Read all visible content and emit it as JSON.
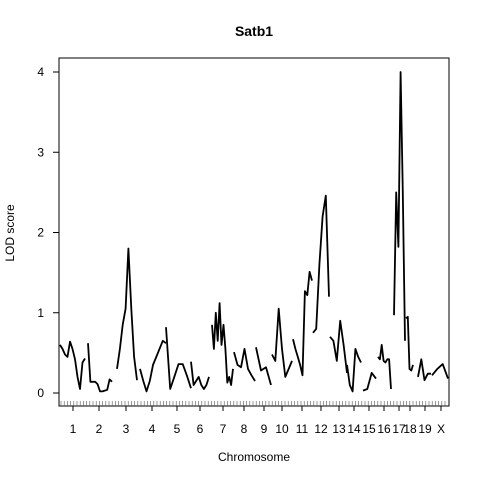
{
  "chart_data": {
    "type": "line",
    "title": "Satb1",
    "xlabel": "Chromosome",
    "ylabel": "LOD score",
    "ylim": [
      0,
      4
    ],
    "yticks": [
      0,
      1,
      2,
      3,
      4
    ],
    "chromosome_labels": [
      "1",
      "2",
      "3",
      "4",
      "5",
      "6",
      "7",
      "8",
      "9",
      "10",
      "11",
      "12",
      "13",
      "14",
      "15",
      "16",
      "17",
      "18",
      "19",
      "X"
    ],
    "chromosomes": [
      {
        "name": "1",
        "pts": [
          [
            0.6
          ],
          [
            0.55
          ],
          [
            0.48
          ],
          [
            0.45
          ],
          [
            0.64
          ],
          [
            0.55
          ],
          [
            0.42
          ],
          [
            0.2
          ],
          [
            0.05
          ],
          [
            0.38
          ],
          [
            0.43
          ]
        ],
        "start": 0,
        "len": 11
      },
      {
        "name": "2",
        "pts": [
          [
            0.62
          ],
          [
            0.14
          ],
          [
            0.14
          ],
          [
            0.14
          ],
          [
            0.11
          ],
          [
            0.02
          ],
          [
            0.02
          ],
          [
            0.03
          ],
          [
            0.04
          ],
          [
            0.17
          ],
          [
            0.14
          ]
        ],
        "start": 0,
        "len": 11
      },
      {
        "name": "3",
        "pts": [
          [
            0.3
          ],
          [
            0.55
          ],
          [
            0.85
          ],
          [
            1.05
          ],
          [
            1.8
          ],
          [
            1.05
          ],
          [
            0.45
          ],
          [
            0.16
          ]
        ],
        "start": 0,
        "len": 8
      },
      {
        "name": "4",
        "pts": [
          [
            0.3
          ],
          [
            0.15
          ],
          [
            0.02
          ],
          [
            0.15
          ],
          [
            0.35
          ],
          [
            0.45
          ],
          [
            0.55
          ],
          [
            0.65
          ],
          [
            0.62
          ]
        ],
        "start": 0,
        "len": 9
      },
      {
        "name": "5",
        "pts": [
          [
            0.82
          ],
          [
            0.05
          ],
          [
            0.2
          ],
          [
            0.36
          ],
          [
            0.36
          ],
          [
            0.22
          ],
          [
            0.06
          ]
        ],
        "start": 0,
        "len": 7
      },
      {
        "name": "6",
        "pts": [
          [
            0.39
          ],
          [
            0.1
          ],
          [
            0.15
          ],
          [
            0.2
          ],
          [
            0.1
          ],
          [
            0.05
          ],
          [
            0.1
          ],
          [
            0.2
          ]
        ],
        "start": 0,
        "len": 8
      },
      {
        "name": "7",
        "pts": [
          [
            0.85
          ],
          [
            0.55
          ],
          [
            1.0
          ],
          [
            0.65
          ],
          [
            1.12
          ],
          [
            0.6
          ],
          [
            0.85
          ],
          [
            0.55
          ],
          [
            0.13
          ],
          [
            0.2
          ],
          [
            0.1
          ],
          [
            0.3
          ]
        ],
        "start": 0,
        "len": 12
      },
      {
        "name": "8",
        "pts": [
          [
            0.51
          ],
          [
            0.35
          ],
          [
            0.32
          ],
          [
            0.55
          ],
          [
            0.3
          ],
          [
            0.22
          ],
          [
            0.15
          ]
        ],
        "start": 0,
        "len": 7
      },
      {
        "name": "9",
        "pts": [
          [
            0.57
          ],
          [
            0.28
          ],
          [
            0.32
          ],
          [
            0.1
          ]
        ],
        "start": 0,
        "len": 4
      },
      {
        "name": "10",
        "pts": [
          [
            0.48
          ],
          [
            0.4
          ],
          [
            1.05
          ],
          [
            0.55
          ],
          [
            0.2
          ],
          [
            0.3
          ],
          [
            0.4
          ]
        ],
        "start": 0,
        "len": 7
      },
      {
        "name": "11",
        "pts": [
          [
            0.67
          ],
          [
            0.55
          ],
          [
            0.45
          ],
          [
            0.35
          ],
          [
            0.22
          ],
          [
            1.27
          ],
          [
            1.22
          ],
          [
            1.51
          ],
          [
            1.4
          ]
        ],
        "start": 0,
        "len": 9
      },
      {
        "name": "12",
        "pts": [
          [
            0.75
          ],
          [
            0.8
          ],
          [
            1.6
          ],
          [
            2.2
          ],
          [
            2.46
          ],
          [
            1.2
          ]
        ],
        "start": 0,
        "len": 6
      },
      {
        "name": "13",
        "pts": [
          [
            0.7
          ],
          [
            0.65
          ],
          [
            0.4
          ],
          [
            0.9
          ],
          [
            0.6
          ],
          [
            0.25
          ]
        ],
        "start": 0,
        "len": 6
      },
      {
        "name": "14",
        "pts": [
          [
            0.35
          ],
          [
            0.1
          ],
          [
            0.02
          ],
          [
            0.55
          ],
          [
            0.45
          ],
          [
            0.38
          ]
        ],
        "start": 0,
        "len": 6
      },
      {
        "name": "15",
        "pts": [
          [
            0.03
          ],
          [
            0.05
          ],
          [
            0.25
          ],
          [
            0.18
          ]
        ],
        "start": 0,
        "len": 4
      },
      {
        "name": "16",
        "pts": [
          [
            0.45
          ],
          [
            0.42
          ],
          [
            0.6
          ],
          [
            0.4
          ],
          [
            0.38
          ],
          [
            0.42
          ],
          [
            0.42
          ],
          [
            0.05
          ]
        ],
        "start": 0,
        "len": 8
      },
      {
        "name": "17",
        "pts": [
          [
            0.97
          ],
          [
            2.5
          ],
          [
            1.82
          ],
          [
            4.0
          ],
          [
            2.5
          ],
          [
            0.65
          ]
        ],
        "start": 0,
        "len": 6
      },
      {
        "name": "18",
        "pts": [
          [
            0.93
          ],
          [
            0.95
          ],
          [
            0.3
          ],
          [
            0.28
          ],
          [
            0.35
          ]
        ],
        "start": 0,
        "len": 5
      },
      {
        "name": "19",
        "pts": [
          [
            0.2
          ],
          [
            0.42
          ],
          [
            0.16
          ],
          [
            0.24
          ],
          [
            0.24
          ]
        ],
        "start": 0,
        "len": 5
      },
      {
        "name": "X",
        "pts": [
          [
            0.22
          ],
          [
            0.3
          ],
          [
            0.36
          ],
          [
            0.18
          ]
        ],
        "start": 0,
        "len": 4
      }
    ]
  }
}
